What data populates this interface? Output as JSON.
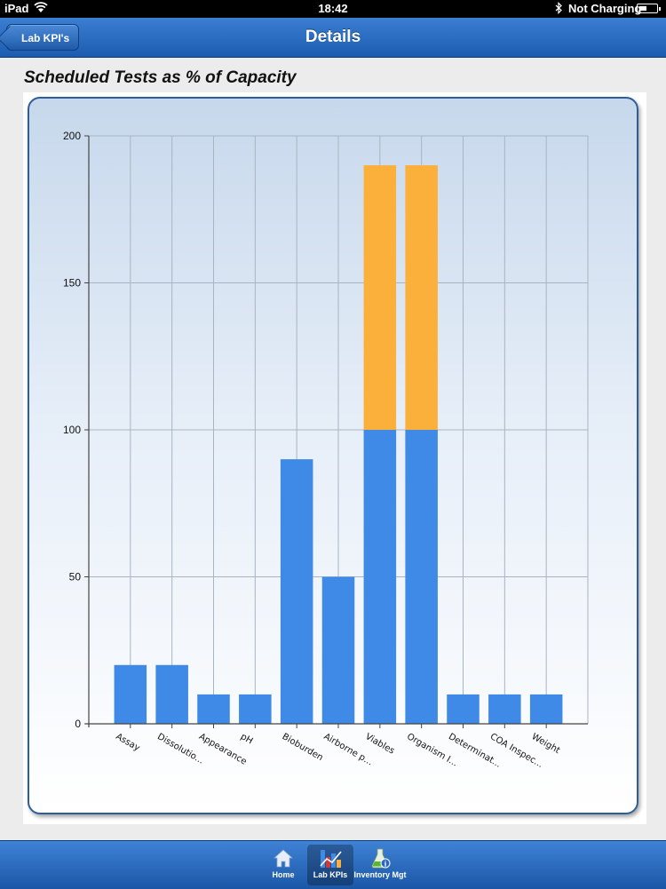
{
  "status_bar": {
    "carrier": "iPad",
    "time": "18:42",
    "battery_status": "Not Charging",
    "battery_level": 0.45
  },
  "nav": {
    "back_label": "Lab KPI's",
    "title": "Details"
  },
  "chart_heading": "Scheduled Tests as % of Capacity",
  "chart_data": {
    "type": "bar",
    "stacked": true,
    "title": "Scheduled Tests as % of Capacity",
    "xlabel": "",
    "ylabel": "",
    "categories": [
      "Assay",
      "Dissolutio...",
      "Appearance",
      "pH",
      "Bioburden",
      "Airborne p...",
      "Viables",
      "Organism I...",
      "Determinat...",
      "COA Inspec...",
      "Weight"
    ],
    "series": [
      {
        "values": [
          20,
          20,
          10,
          10,
          90,
          50,
          100,
          100,
          10,
          10,
          10
        ],
        "color": "#3f8ae6"
      },
      {
        "values": [
          0,
          0,
          0,
          0,
          0,
          0,
          90,
          90,
          0,
          0,
          0
        ],
        "color": "#fbb03b"
      }
    ],
    "ylim": [
      0,
      200
    ],
    "yticks": [
      0,
      50,
      100,
      150,
      200
    ],
    "grid": true,
    "legend": "none"
  },
  "tabs": [
    {
      "label": "Home",
      "icon": "home-icon"
    },
    {
      "label": "Lab KPIs",
      "icon": "chart-icon",
      "active": true
    },
    {
      "label": "Inventory Mgt",
      "icon": "flask-icon"
    }
  ]
}
